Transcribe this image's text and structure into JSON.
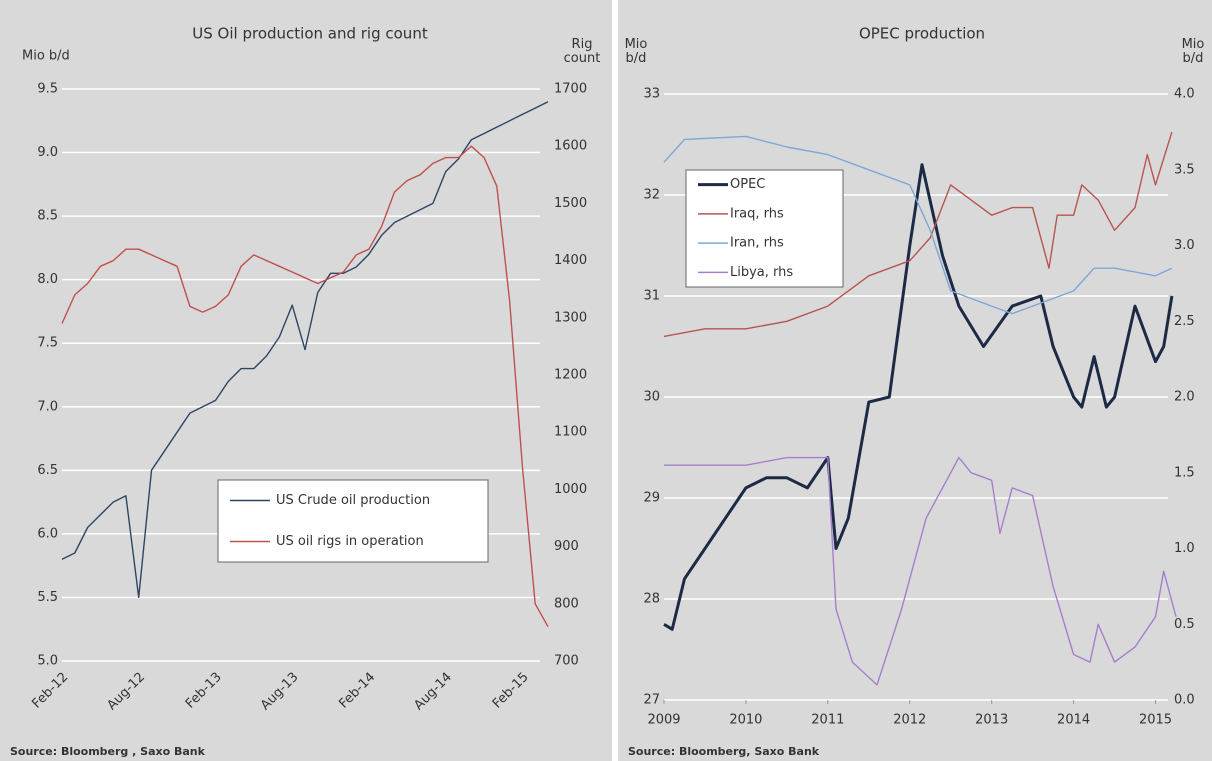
{
  "chart_data": [
    {
      "type": "line",
      "title": "US Oil production and rig count",
      "y_label": "Mio b/d",
      "y2_label": "Rig count",
      "source": "Source: Bloomberg , Saxo Bank",
      "categories": [
        "Feb-12",
        null,
        null,
        null,
        null,
        null,
        "Aug-12",
        null,
        null,
        null,
        null,
        null,
        "Feb-13",
        null,
        null,
        null,
        null,
        null,
        "Aug-13",
        null,
        null,
        null,
        null,
        null,
        "Feb-14",
        null,
        null,
        null,
        null,
        null,
        "Aug-14",
        null,
        null,
        null,
        null,
        null,
        "Feb-15",
        null,
        null
      ],
      "series": [
        {
          "name": "US Crude oil production",
          "color": "#2e4566",
          "values": [
            5.8,
            5.85,
            6.05,
            6.15,
            6.25,
            6.3,
            5.5,
            6.5,
            6.65,
            6.8,
            6.95,
            7.0,
            7.05,
            7.2,
            7.3,
            7.3,
            7.4,
            7.55,
            7.8,
            7.45,
            7.9,
            8.05,
            8.05,
            8.1,
            8.2,
            8.35,
            8.45,
            8.5,
            8.55,
            8.6,
            8.85,
            8.95,
            9.1,
            9.15,
            9.2,
            9.25,
            9.3,
            9.35,
            9.4
          ]
        },
        {
          "name": "US oil rigs in operation",
          "color": "#c0504d",
          "axis": "y2",
          "values": [
            1290,
            1340,
            1360,
            1390,
            1400,
            1420,
            1420,
            1410,
            1400,
            1390,
            1320,
            1310,
            1320,
            1340,
            1390,
            1410,
            1400,
            1390,
            1380,
            1370,
            1360,
            1370,
            1380,
            1410,
            1420,
            1460,
            1520,
            1540,
            1550,
            1570,
            1580,
            1580,
            1600,
            1580,
            1530,
            1330,
            1040,
            800,
            760
          ]
        }
      ],
      "ylim": [
        5,
        9.5
      ],
      "yticks": [
        {
          "value": 5,
          "label": "5.0"
        },
        5.5,
        {
          "value": 6,
          "label": "6.0"
        },
        6.5,
        {
          "value": 7,
          "label": "7.0"
        },
        7.5,
        {
          "value": 8,
          "label": "8.0"
        },
        8.5,
        {
          "value": 9,
          "label": "9.0"
        },
        9.5
      ],
      "y2lim": [
        700,
        1700
      ],
      "y2ticks": [
        700,
        800,
        900,
        1000,
        1100,
        1200,
        1300,
        1400,
        1500,
        1600,
        1700
      ],
      "grid": true,
      "legend": "center"
    },
    {
      "type": "line",
      "title": "OPEC production",
      "y_label": "Mio b/d",
      "y2_label": "Mio b/d",
      "source": "Source: Bloomberg, Saxo Bank",
      "series": [
        {
          "name": "OPEC",
          "color": "#1c2a45",
          "width": 3,
          "x": [
            2009,
            2009.1,
            2009.25,
            2009.5,
            2009.75,
            2010,
            2010.25,
            2010.5,
            2010.75,
            2011,
            2011.1,
            2011.25,
            2011.5,
            2011.75,
            2011.9,
            2012,
            2012.15,
            2012.4,
            2012.6,
            2012.9,
            2013.25,
            2013.6,
            2013.75,
            2014,
            2014.1,
            2014.25,
            2014.4,
            2014.5,
            2014.75,
            2015,
            2015.1,
            2015.2
          ],
          "values": [
            27.75,
            27.7,
            28.2,
            28.5,
            28.8,
            29.1,
            29.2,
            29.2,
            29.1,
            29.4,
            28.5,
            28.8,
            29.95,
            30.0,
            30.9,
            31.5,
            32.3,
            31.4,
            30.9,
            30.5,
            30.9,
            31.0,
            30.5,
            30.0,
            29.9,
            30.4,
            29.9,
            30.0,
            30.9,
            30.35,
            30.5,
            31.0
          ]
        },
        {
          "name": "Iraq, rhs",
          "color": "#b85450",
          "axis": "y2",
          "x": [
            2009,
            2009.5,
            2010,
            2010.5,
            2011,
            2011.5,
            2012,
            2012.25,
            2012.5,
            2012.75,
            2013,
            2013.25,
            2013.5,
            2013.7,
            2013.8,
            2014,
            2014.1,
            2014.3,
            2014.5,
            2014.75,
            2014.9,
            2015,
            2015.2
          ],
          "values": [
            2.4,
            2.45,
            2.45,
            2.5,
            2.6,
            2.8,
            2.9,
            3.05,
            3.4,
            3.3,
            3.2,
            3.25,
            3.25,
            2.85,
            3.2,
            3.2,
            3.4,
            3.3,
            3.1,
            3.25,
            3.6,
            3.4,
            3.75
          ]
        },
        {
          "name": "Iran, rhs",
          "color": "#7ea6d8",
          "axis": "y2",
          "x": [
            2009,
            2009.25,
            2010,
            2010.5,
            2011,
            2011.5,
            2012,
            2012.25,
            2012.5,
            2012.75,
            2013,
            2013.25,
            2013.5,
            2014,
            2014.25,
            2014.5,
            2015,
            2015.2
          ],
          "values": [
            3.55,
            3.7,
            3.72,
            3.65,
            3.6,
            3.5,
            3.4,
            3.1,
            2.7,
            2.65,
            2.6,
            2.55,
            2.6,
            2.7,
            2.85,
            2.85,
            2.8,
            2.85
          ]
        },
        {
          "name": "Libya, rhs",
          "color": "#a57fcc",
          "axis": "y2",
          "x": [
            2009,
            2010,
            2010.5,
            2011,
            2011.1,
            2011.3,
            2011.6,
            2011.9,
            2012.2,
            2012.5,
            2012.6,
            2012.75,
            2013,
            2013.1,
            2013.25,
            2013.5,
            2013.75,
            2014,
            2014.2,
            2014.3,
            2014.5,
            2014.75,
            2015,
            2015.1,
            2015.25
          ],
          "values": [
            1.55,
            1.55,
            1.6,
            1.6,
            0.6,
            0.25,
            0.1,
            0.6,
            1.2,
            1.5,
            1.6,
            1.5,
            1.45,
            1.1,
            1.4,
            1.35,
            0.75,
            0.3,
            0.25,
            0.5,
            0.25,
            0.35,
            0.55,
            0.85,
            0.55
          ]
        }
      ],
      "xlim": [
        2009,
        2015.25
      ],
      "xticks": [
        2009,
        2010,
        2011,
        2012,
        2013,
        2014,
        2015
      ],
      "ylim": [
        27,
        33
      ],
      "yticks": [
        27,
        28,
        29,
        30,
        31,
        32,
        33
      ],
      "y2lim": [
        0,
        4
      ],
      "y2ticks": [
        {
          "value": 0,
          "label": "0.0"
        },
        0.5,
        {
          "value": 1,
          "label": "1.0"
        },
        1.5,
        {
          "value": 2,
          "label": "2.0"
        },
        2.5,
        {
          "value": 3,
          "label": "3.0"
        },
        3.5,
        {
          "value": 4,
          "label": "4.0"
        }
      ],
      "grid": true,
      "legend": "upper left"
    }
  ]
}
